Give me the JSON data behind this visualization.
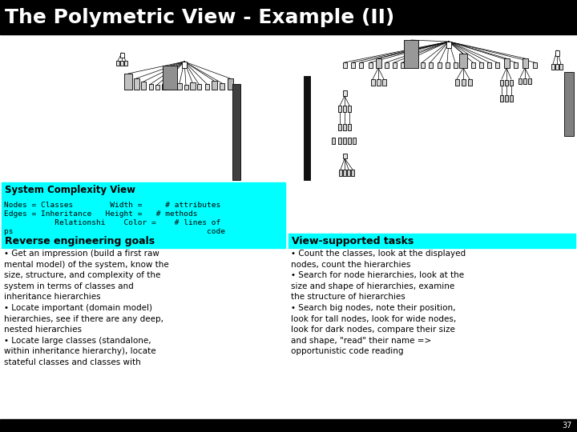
{
  "title": "The Polymetric View - Example (II)",
  "title_bg": "#000000",
  "title_color": "#ffffff",
  "title_fontsize": 18,
  "bg_color": "#ffffff",
  "cyan_color": "#00FFFF",
  "section1_header": "System Complexity View",
  "nodes_line1": "Nodes = Classes        Width =     # attributes",
  "nodes_line2": "Edges = Inheritance   Height =   # methods",
  "nodes_line3": "           Relationshi    Color =    # lines of",
  "nodes_line4": "ps                                          code",
  "rev_eng_header": "Reverse engineering goals",
  "rev_eng_body": "• Get an impression (build a first raw\nmental model) of the system, know the\nsize, structure, and complexity of the\nsystem in terms of classes and\ninheritance hierarchies\n• Locate important (domain model)\nhierarchies, see if there are any deep,\nnested hierarchies\n• Locate large classes (standalone,\nwithin inheritance hierarchy), locate\nstateful classes and classes with",
  "view_tasks_header": "View-supported tasks",
  "view_tasks_body": "• Count the classes, look at the displayed\nnodes, count the hierarchies\n• Search for node hierarchies, look at the\nsize and shape of hierarchies, examine\nthe structure of hierarchies\n• Search big nodes, note their position,\nlook for tall nodes, look for wide nodes,\nlook for dark nodes, compare their size\nand shape, \"read\" their name =>\nopportunistic code reading",
  "slide_number": "37"
}
